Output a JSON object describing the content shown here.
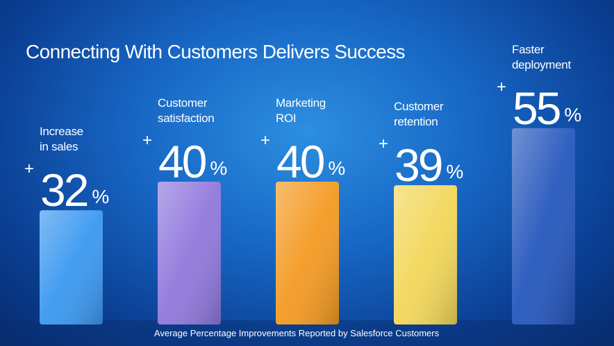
{
  "chart_data": {
    "type": "bar",
    "title": "Connecting With Customers Delivers Success",
    "caption": "Average Percentage Improvements Reported by Salesforce Customers",
    "categories": [
      "Increase\nin sales",
      "Customer\nsatisfaction",
      "Marketing\nROI",
      "Customer\nretention",
      "Faster\ndeployment"
    ],
    "values": [
      32,
      40,
      40,
      39,
      55
    ],
    "value_prefix": "+",
    "value_suffix": "%",
    "colors": [
      "#3b98f0",
      "#8f78dc",
      "#f39a22",
      "#f2d75a",
      "#2557bd"
    ]
  }
}
